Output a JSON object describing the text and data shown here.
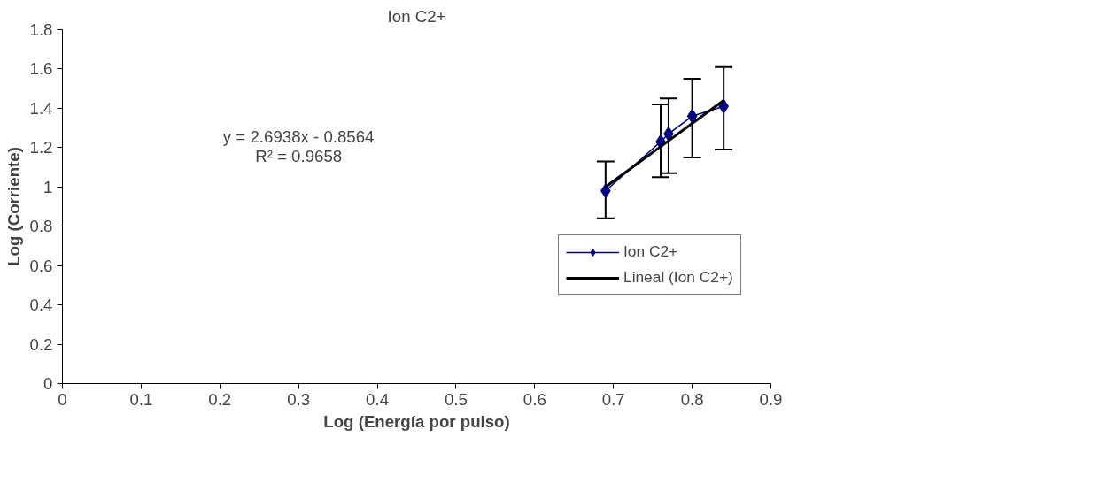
{
  "chart_data": {
    "type": "line",
    "title": "Ion C2+",
    "xlabel": "Log (Energía por pulso)",
    "ylabel": "Log (Corriente)",
    "annotations": [
      "y = 2.6938x - 0.8564",
      "R² = 0.9658"
    ],
    "series": [
      {
        "name": "Ion C2+",
        "color": "#000080",
        "marker": "diamond",
        "x": [
          0.69,
          0.76,
          0.77,
          0.8,
          0.84
        ],
        "values": [
          0.98,
          1.23,
          1.27,
          1.36,
          1.41
        ],
        "errors": [
          [
            0.84,
            1.13
          ],
          [
            1.05,
            1.42
          ],
          [
            1.07,
            1.45
          ],
          [
            1.15,
            1.55
          ],
          [
            1.19,
            1.61
          ]
        ]
      },
      {
        "name": "Lineal (Ion C2+)",
        "color": "#000000",
        "x": [
          0.69,
          0.84
        ],
        "values": [
          1.0,
          1.44
        ]
      }
    ],
    "xlim": [
      0,
      0.9
    ],
    "xticks": [
      0,
      0.1,
      0.2,
      0.3,
      0.4,
      0.5,
      0.6,
      0.7,
      0.8,
      0.9
    ],
    "ylim": [
      0,
      1.8
    ],
    "yticks": [
      0,
      0.2,
      0.4,
      0.6,
      0.8,
      1,
      1.2,
      1.4,
      1.6,
      1.8
    ],
    "grid": false,
    "legend": "right"
  }
}
